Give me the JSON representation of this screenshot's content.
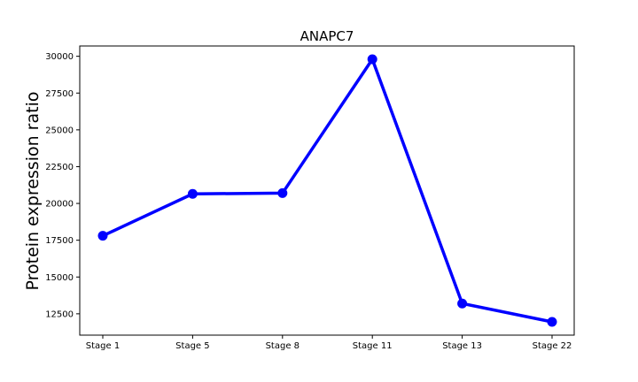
{
  "chart_data": {
    "type": "line",
    "title": "ANAPC7",
    "xlabel": "",
    "ylabel": "Protein expression ratio",
    "categories": [
      "Stage 1",
      "Stage 5",
      "Stage 8",
      "Stage 11",
      "Stage 13",
      "Stage 22"
    ],
    "series": [
      {
        "values": [
          17800,
          20650,
          20700,
          29800,
          13200,
          11950
        ],
        "color": "#0000ff"
      }
    ],
    "yticks": [
      12500,
      15000,
      17500,
      20000,
      22500,
      25000,
      27500,
      30000
    ],
    "ylim": [
      11050,
      30700
    ],
    "grid": false,
    "legend": "none",
    "markers": "circle"
  }
}
